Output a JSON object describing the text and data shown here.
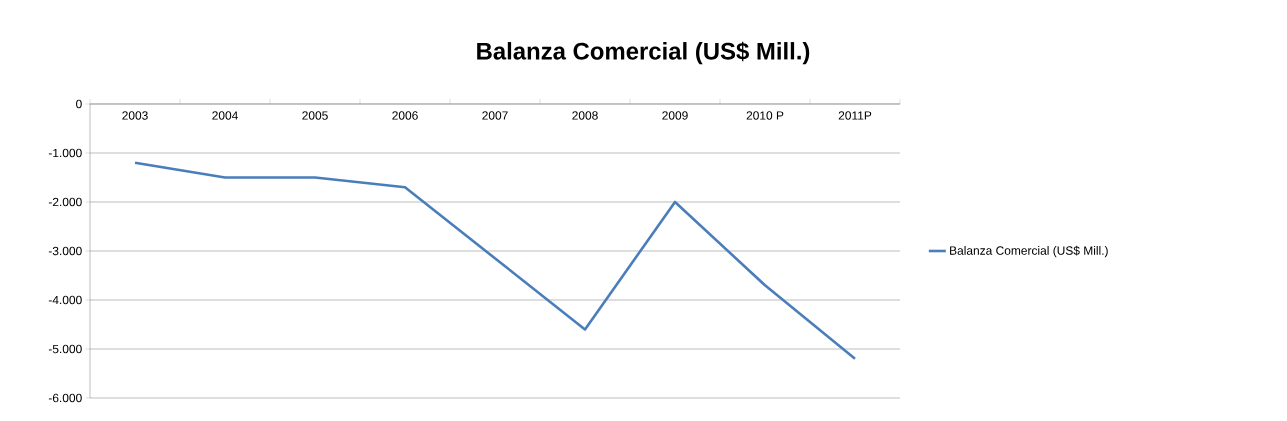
{
  "chart_data": {
    "type": "line",
    "title": "Balanza Comercial (US$ Mill.)",
    "categories": [
      "2003",
      "2004",
      "2005",
      "2006",
      "2007",
      "2008",
      "2009",
      "2010 P",
      "2011P"
    ],
    "series": [
      {
        "name": "Balanza Comercial (US$ Mill.)",
        "color": "#4a7ebb",
        "values": [
          -1200,
          -1500,
          -1500,
          -1700,
          -3150,
          -4600,
          -2000,
          -3700,
          -5200
        ]
      }
    ],
    "ylim": [
      -6000,
      0
    ],
    "yticks": [
      {
        "value": -6000,
        "label": "-6.000"
      },
      {
        "value": -5000,
        "label": "-5.000"
      },
      {
        "value": -4000,
        "label": "-4.000"
      },
      {
        "value": -3000,
        "label": "-3.000"
      },
      {
        "value": -2000,
        "label": "-2.000"
      },
      {
        "value": -1000,
        "label": "-1.000"
      },
      0
    ],
    "grid": "y",
    "legend": "right",
    "marker": "none",
    "line_style": "solid"
  }
}
